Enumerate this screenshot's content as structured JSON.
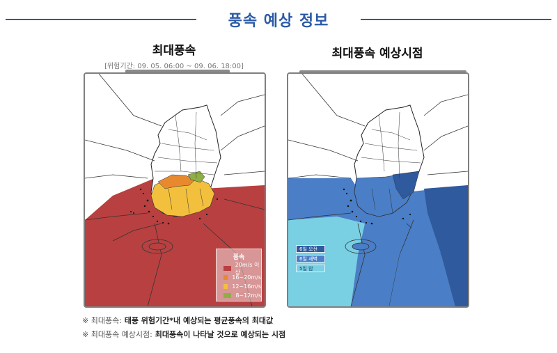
{
  "header": {
    "title": "풍속 예상 정보"
  },
  "left_panel": {
    "title": "최대풍속",
    "period": "[위험기간: 09. 05. 06:00 ~ 09. 06. 18:00]",
    "legend": {
      "title": "풍속",
      "items": [
        {
          "label": "20m/s 이상",
          "color": "#b94040"
        },
        {
          "label": "16~20m/s",
          "color": "#e8892f"
        },
        {
          "label": "12~16m/s",
          "color": "#f2c03c"
        },
        {
          "label": "8~12m/s",
          "color": "#8fae44"
        }
      ]
    },
    "colors": {
      "sea_zone": "#b94040",
      "land_high": "#f2c03c",
      "land_mid": "#e8892f",
      "land_low": "#8fae44"
    }
  },
  "right_panel": {
    "title": "최대풍속 예상시점",
    "legend": {
      "items": [
        {
          "label": "6일 오전",
          "color": "#2f5a9e"
        },
        {
          "label": "6일 새벽",
          "color": "#4a7ec6"
        },
        {
          "label": "5일 밤",
          "color": "#78d0e2"
        }
      ]
    }
  },
  "notes": [
    {
      "prefix": "※ 최대풍속:",
      "text": " 태풍 위험기간*내 예상되는 평균풍속의 최대값"
    },
    {
      "prefix": "※ 최대풍속 예상시점:",
      "text": " 최대풍속이 나타날 것으로 예상되는 시점"
    }
  ]
}
